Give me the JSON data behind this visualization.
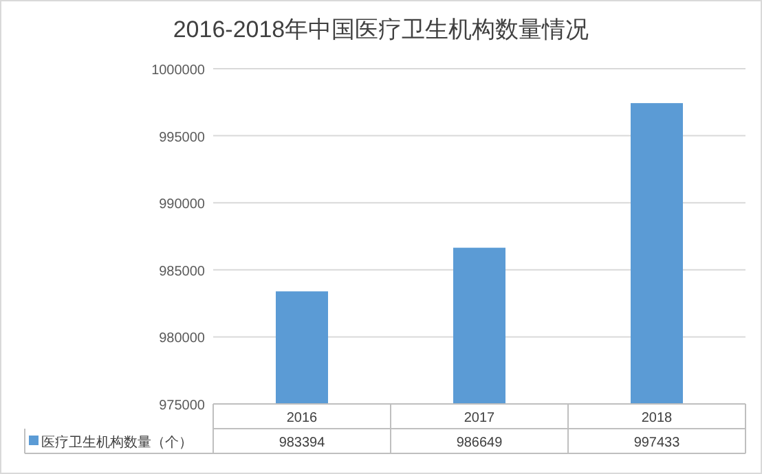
{
  "chart_data": {
    "type": "bar",
    "title": "2016-2018年中国医疗卫生机构数量情况",
    "categories": [
      "2016",
      "2017",
      "2018"
    ],
    "series": [
      {
        "name": "医疗卫生机构数量（个）",
        "color": "#5b9bd5",
        "values": [
          983394,
          986649,
          997433
        ]
      }
    ],
    "ylim": [
      975000,
      1000000
    ],
    "yticks": [
      975000,
      980000,
      985000,
      990000,
      995000,
      1000000
    ],
    "grid": "y",
    "data_labels": true
  }
}
